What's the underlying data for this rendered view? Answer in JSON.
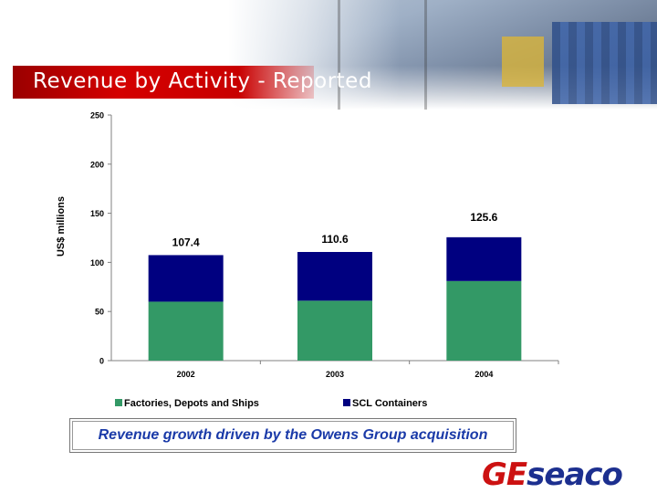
{
  "slide": {
    "title": "Revenue by Activity - Reported",
    "caption": "Revenue growth driven by the Owens Group acquisition",
    "logo": {
      "part1": "GE",
      "part2": "seaco"
    }
  },
  "chart_data": {
    "type": "bar",
    "stacked": true,
    "categories": [
      "2002",
      "2003",
      "2004"
    ],
    "series": [
      {
        "name": "Factories, Depots and Ships",
        "values": [
          60,
          61,
          81
        ],
        "color": "#339966"
      },
      {
        "name": "SCL Containers",
        "values": [
          47.4,
          49.6,
          44.6
        ],
        "color": "#000080"
      }
    ],
    "totals": [
      "107.4",
      "110.6",
      "125.6"
    ],
    "ylabel": "US$ millions",
    "xlabel": "",
    "ylim": [
      0,
      250
    ],
    "yticks": [
      "0",
      "50",
      "100",
      "150",
      "200",
      "250"
    ],
    "grid": false,
    "legend_position": "bottom"
  }
}
